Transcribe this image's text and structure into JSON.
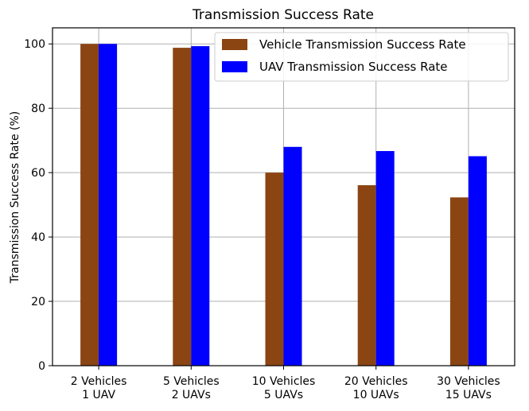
{
  "chart_data": {
    "type": "bar",
    "title": "Transmission Success Rate",
    "xlabel": "",
    "ylabel": "Transmission Success Rate (%)",
    "categories": [
      [
        "2 Vehicles",
        "1 UAV"
      ],
      [
        "5 Vehicles",
        "2 UAVs"
      ],
      [
        "10 Vehicles",
        "5 UAVs"
      ],
      [
        "20 Vehicles",
        "10 UAVs"
      ],
      [
        "30 Vehicles",
        "15 UAVs"
      ]
    ],
    "series": [
      {
        "name": "Vehicle Transmission Success Rate",
        "color": "#8B4513",
        "values": [
          100,
          98.8,
          60,
          56.1,
          52.3
        ]
      },
      {
        "name": "UAV Transmission Success Rate",
        "color": "#0000FF",
        "values": [
          100,
          99.3,
          68,
          66.7,
          65.1
        ]
      }
    ],
    "ylim": [
      0,
      105
    ],
    "yticks": [
      0,
      20,
      40,
      60,
      80,
      100
    ],
    "grid": true,
    "legend_position": "top-right"
  }
}
